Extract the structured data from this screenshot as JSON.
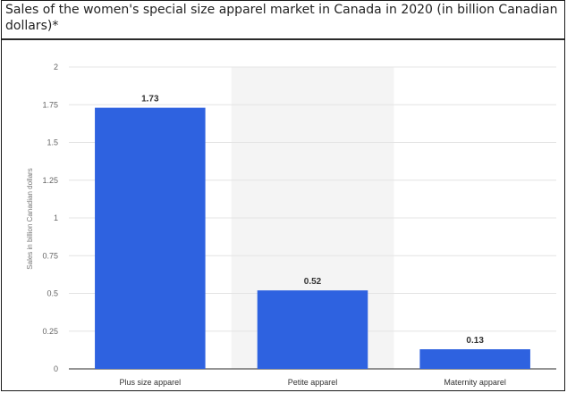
{
  "chart_data": {
    "type": "bar",
    "title": "Sales of the women's special size apparel market in Canada in 2020 (in billion Canadian dollars)*",
    "categories": [
      "Plus size apparel",
      "Petite apparel",
      "Maternity apparel"
    ],
    "values": [
      1.73,
      0.52,
      0.13
    ],
    "value_labels": [
      "1.73",
      "0.52",
      "0.13"
    ],
    "ylabel": "Sales in billion Canadian dollars",
    "xlabel": "",
    "ylim": [
      0,
      2
    ],
    "yticks": [
      "0",
      "0.25",
      "0.5",
      "0.75",
      "1",
      "1.25",
      "1.5",
      "1.75",
      "2"
    ],
    "highlight_index": 1,
    "grid": true,
    "colors": {
      "bar": "#2e62e0",
      "highlight_band": "#f4f4f4",
      "grid": "#e4e4e4",
      "axis": "#555555"
    }
  }
}
